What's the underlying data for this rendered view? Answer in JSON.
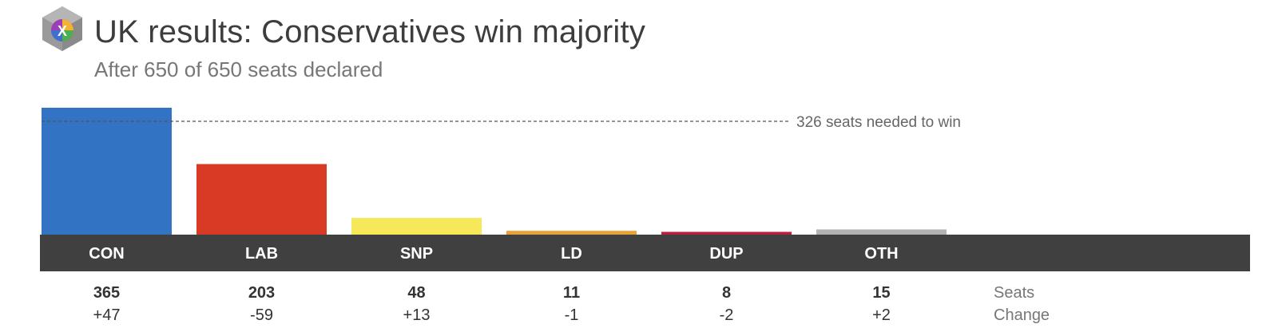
{
  "header": {
    "title": "UK results: Conservatives win majority",
    "subtitle": "After 650 of 650 seats declared",
    "logo_letter": "X"
  },
  "chart_data": {
    "type": "bar",
    "title": "UK results: Conservatives win majority",
    "subtitle": "After 650 of 650 seats declared",
    "categories": [
      "CON",
      "LAB",
      "SNP",
      "LD",
      "DUP",
      "OTH"
    ],
    "values": [
      365,
      203,
      48,
      11,
      8,
      15
    ],
    "changes": [
      "+47",
      "-59",
      "+13",
      "-1",
      "-2",
      "+2"
    ],
    "colors": [
      "#3373c4",
      "#d93a25",
      "#f5e95a",
      "#e8a23a",
      "#b8203e",
      "#b3b3b3"
    ],
    "ylim": [
      0,
      365
    ],
    "majority": {
      "value": 326,
      "label": "326 seats needed to win"
    },
    "row_labels": {
      "seats": "Seats",
      "change": "Change"
    },
    "axis_band_color": "#404040"
  }
}
